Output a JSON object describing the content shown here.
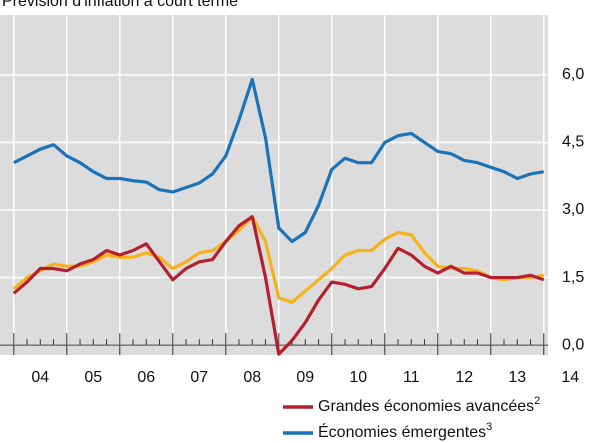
{
  "chart_data": {
    "type": "line",
    "title": "Prévision d'inflation à court terme",
    "x": [
      2004,
      2004.25,
      2004.5,
      2004.75,
      2005,
      2005.25,
      2005.5,
      2005.75,
      2006,
      2006.25,
      2006.5,
      2006.75,
      2007,
      2007.25,
      2007.5,
      2007.75,
      2008,
      2008.25,
      2008.5,
      2008.75,
      2009,
      2009.25,
      2009.5,
      2009.75,
      2010,
      2010.25,
      2010.5,
      2010.75,
      2011,
      2011.25,
      2011.5,
      2011.75,
      2012,
      2012.25,
      2012.5,
      2012.75,
      2013,
      2013.25,
      2013.5,
      2013.75,
      2014
    ],
    "series": [
      {
        "color": "#f7b21b",
        "values": [
          1.25,
          1.5,
          1.65,
          1.8,
          1.75,
          1.75,
          1.85,
          2.0,
          1.95,
          1.95,
          2.05,
          1.95,
          1.7,
          1.85,
          2.05,
          2.1,
          2.3,
          2.55,
          2.85,
          2.3,
          1.05,
          0.95,
          1.2,
          1.45,
          1.7,
          2.0,
          2.1,
          2.1,
          2.35,
          2.5,
          2.45,
          2.05,
          1.75,
          1.7,
          1.7,
          1.65,
          1.5,
          1.45,
          1.5,
          1.5,
          1.55
        ]
      },
      {
        "name": "Grandes économies avancées",
        "footnote": "2",
        "color": "#b5202e",
        "values": [
          1.15,
          1.4,
          1.7,
          1.7,
          1.65,
          1.8,
          1.9,
          2.1,
          2.0,
          2.1,
          2.25,
          1.85,
          1.45,
          1.7,
          1.85,
          1.9,
          2.3,
          2.65,
          2.85,
          1.5,
          -0.2,
          0.1,
          0.5,
          1.0,
          1.4,
          1.35,
          1.25,
          1.3,
          1.7,
          2.15,
          2.0,
          1.75,
          1.6,
          1.75,
          1.6,
          1.6,
          1.5,
          1.5,
          1.5,
          1.55,
          1.45
        ]
      },
      {
        "name": "Économies émergentes",
        "footnote": "3",
        "color": "#1a72b8",
        "values": [
          4.05,
          4.2,
          4.35,
          4.45,
          4.2,
          4.05,
          3.85,
          3.7,
          3.7,
          3.65,
          3.62,
          3.45,
          3.4,
          3.5,
          3.6,
          3.8,
          4.2,
          5.0,
          5.9,
          4.6,
          2.6,
          2.3,
          2.5,
          3.1,
          3.9,
          4.15,
          4.05,
          4.05,
          4.5,
          4.65,
          4.7,
          4.5,
          4.3,
          4.25,
          4.1,
          4.05,
          3.95,
          3.85,
          3.7,
          3.8,
          3.85
        ]
      }
    ],
    "xlim": [
      2003.74,
      2014.08
    ],
    "xticks": [
      {
        "value": 2004.5,
        "label": "04"
      },
      {
        "value": 2005.5,
        "label": "05"
      },
      {
        "value": 2006.5,
        "label": "06"
      },
      {
        "value": 2007.5,
        "label": "07"
      },
      {
        "value": 2008.5,
        "label": "08"
      },
      {
        "value": 2009.5,
        "label": "09"
      },
      {
        "value": 2010.5,
        "label": "10"
      },
      {
        "value": 2011.5,
        "label": "11"
      },
      {
        "value": 2012.5,
        "label": "12"
      },
      {
        "value": 2013.5,
        "label": "13"
      },
      {
        "value": 2014.5,
        "label": "14"
      }
    ],
    "ylim": [
      -0.22,
      7.33
    ],
    "yticks": [
      {
        "value": 0,
        "label": "0,0"
      },
      {
        "value": 1.5,
        "label": "1,5"
      },
      {
        "value": 3,
        "label": "3,0"
      },
      {
        "value": 4.5,
        "label": "4,5"
      },
      {
        "value": 6,
        "label": "6,0"
      }
    ],
    "grid": true
  }
}
